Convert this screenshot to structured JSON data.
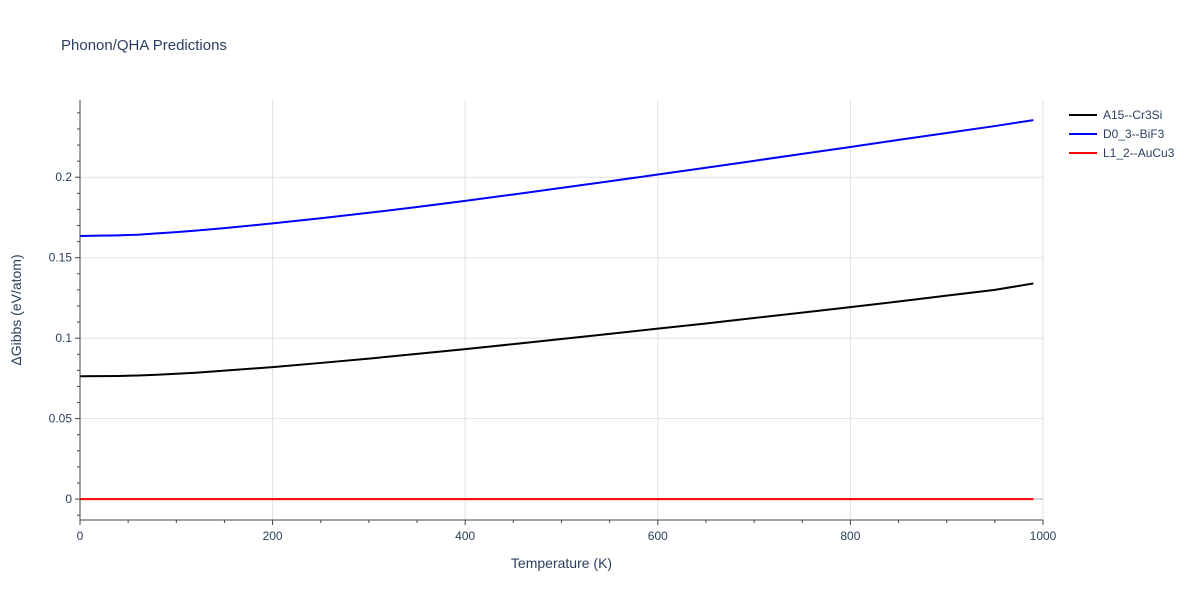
{
  "chart_data": {
    "type": "line",
    "title": "Phonon/QHA Predictions",
    "xlabel": "Temperature (K)",
    "ylabel": "ΔGibbs (eV/atom)",
    "xlim": [
      0,
      1000
    ],
    "ylim": [
      -0.013,
      0.248
    ],
    "x_ticks": [
      0,
      200,
      400,
      600,
      800,
      1000
    ],
    "x_tick_labels": [
      "0",
      "200",
      "400",
      "600",
      "800",
      "1000"
    ],
    "y_ticks": [
      0,
      0.05,
      0.1,
      0.15,
      0.2
    ],
    "y_tick_labels": [
      "0",
      "0.05",
      "0.1",
      "0.15",
      "0.2"
    ],
    "grid": true,
    "legend_position": "top-right",
    "series": [
      {
        "name": "A15--Cr3Si",
        "color": "#000000",
        "x": [
          0,
          20,
          40,
          60,
          80,
          100,
          120,
          150,
          200,
          250,
          300,
          350,
          400,
          450,
          500,
          550,
          600,
          650,
          700,
          750,
          800,
          850,
          900,
          950,
          990
        ],
        "y": [
          0.0763,
          0.0764,
          0.0765,
          0.0768,
          0.0773,
          0.0779,
          0.0785,
          0.0798,
          0.082,
          0.0846,
          0.0873,
          0.0902,
          0.0932,
          0.0963,
          0.0995,
          0.1027,
          0.1059,
          0.1091,
          0.1125,
          0.1159,
          0.1193,
          0.1228,
          0.1264,
          0.13,
          0.134
        ]
      },
      {
        "name": "D0_3--BiF3",
        "color": "#0000ff",
        "x": [
          0,
          20,
          40,
          60,
          80,
          100,
          120,
          150,
          200,
          250,
          300,
          350,
          400,
          450,
          500,
          550,
          600,
          650,
          700,
          750,
          800,
          850,
          900,
          950,
          990
        ],
        "y": [
          0.1635,
          0.1637,
          0.1639,
          0.1643,
          0.1651,
          0.1659,
          0.1668,
          0.1684,
          0.1713,
          0.1745,
          0.1779,
          0.1815,
          0.1853,
          0.1893,
          0.1934,
          0.1975,
          0.2017,
          0.2059,
          0.2102,
          0.2145,
          0.2188,
          0.2232,
          0.2275,
          0.2318,
          0.2355
        ]
      },
      {
        "name": "L1_2--AuCu3",
        "color": "#ff0000",
        "x": [
          0,
          990
        ],
        "y": [
          0,
          0
        ]
      }
    ]
  }
}
